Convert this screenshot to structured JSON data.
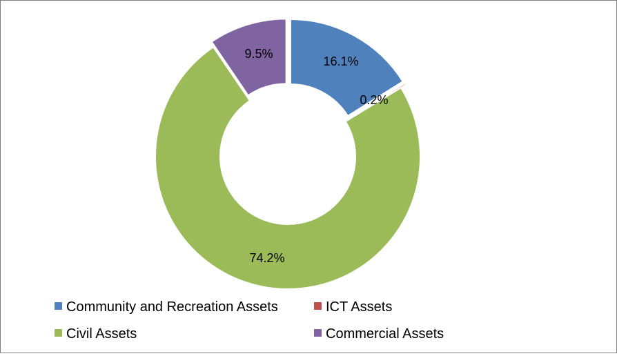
{
  "chart_data": {
    "type": "pie",
    "variant": "donut",
    "title": "",
    "series": [
      {
        "categories": [
          "Community and Recreation Assets",
          "ICT Assets",
          "Civil Assets",
          "Commercial Assets"
        ],
        "values": [
          16.1,
          0.2,
          74.2,
          9.5
        ],
        "labels": [
          "16.1%",
          "0.2%",
          "74.2%",
          "9.5%"
        ],
        "colors": [
          "#4f81bd",
          "#c0504d",
          "#9bbb59",
          "#8064a2"
        ]
      }
    ],
    "legend": {
      "placement": "bottom",
      "columns": 2,
      "entries": [
        {
          "label": "Community and Recreation Assets",
          "color": "#4f81bd"
        },
        {
          "label": "ICT Assets",
          "color": "#c0504d"
        },
        {
          "label": "Civil Assets",
          "color": "#9bbb59"
        },
        {
          "label": "Commercial Assets",
          "color": "#8064a2"
        }
      ]
    },
    "exploded_slices": [
      "Community and Recreation Assets",
      "ICT Assets",
      "Commercial Assets"
    ]
  }
}
